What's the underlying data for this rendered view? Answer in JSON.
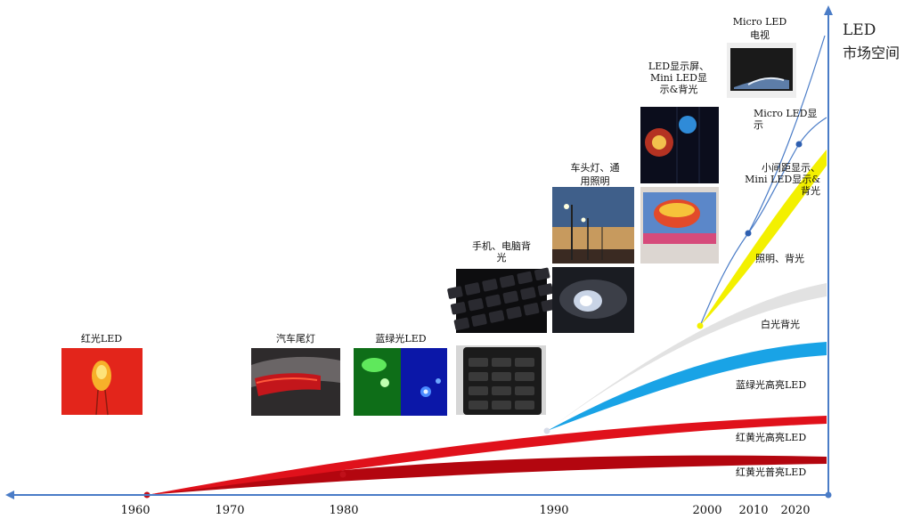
{
  "axis": {
    "y_label_line1": "LED",
    "y_label_line2": "市场空间",
    "ticks": [
      "1960",
      "1970",
      "1980",
      "1990",
      "2000",
      "2010",
      "2020"
    ]
  },
  "milestones": {
    "red_led": "红光LED",
    "car_taillight": "汽车尾灯",
    "blue_green_led": "蓝绿光LED",
    "phone_backlight": "手机、电脑背\n光",
    "headlight": "车头灯、通\n用照明",
    "led_display": "LED显示屏、\nMini LED显\n示&背光",
    "micro_led_tv": "Micro LED\n电视"
  },
  "bands": {
    "micro_led_display": "Micro LED显\n示",
    "small_pitch": "小间距显示、\nMini LED显示&\n背光",
    "lighting_backlight": "照明、背光",
    "white_backlight": "白光背光",
    "blue_green_bright": "蓝绿光高亮LED",
    "red_yellow_bright": "红黄光高亮LED",
    "red_yellow_normal": "红黄光普亮LED"
  },
  "colors": {
    "axis": "#4a7cc7",
    "dark_red": "#b3060f",
    "red": "#e0111b",
    "blue": "#19a3e6",
    "gray": "#e4e4e4",
    "yellow": "#f3f000"
  }
}
